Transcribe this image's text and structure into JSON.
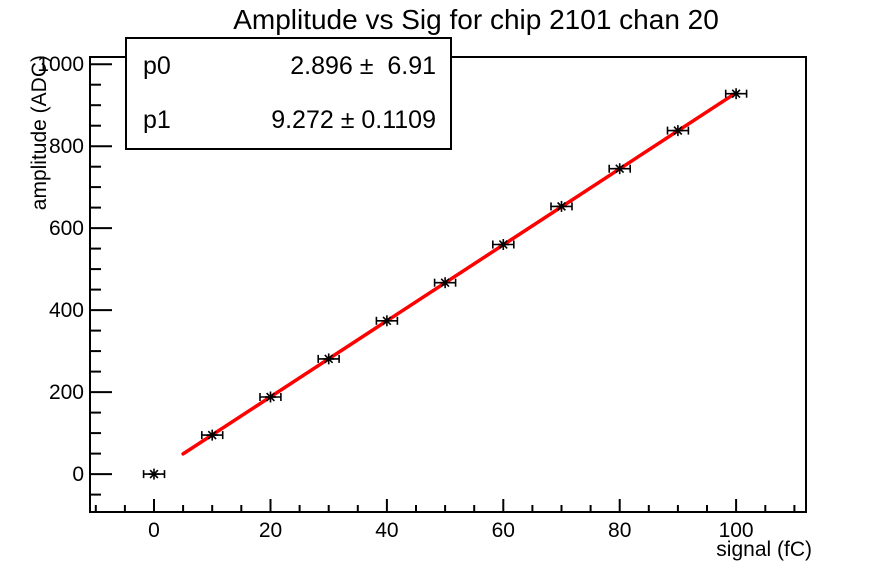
{
  "stats_box": {
    "rows": [
      {
        "label": "p0",
        "value": "2.896 ±  6.91"
      },
      {
        "label": "p1",
        "value": "9.272 ± 0.1109"
      }
    ]
  },
  "chart_data": {
    "type": "scatter",
    "title": "Amplitude vs Sig for chip 2101 chan 20",
    "xlabel": "signal (fC)",
    "ylabel": "amplitude (ADC)",
    "xlim": [
      -11,
      112
    ],
    "ylim": [
      -92.5,
      1017.5
    ],
    "x_major_ticks": [
      0,
      20,
      40,
      60,
      80,
      100
    ],
    "x_minor_step": 5,
    "y_major_ticks": [
      0,
      200,
      400,
      600,
      800,
      1000
    ],
    "y_minor_step": 50,
    "grid": false,
    "legend": null,
    "series": [
      {
        "name": "amplitude-vs-signal-points",
        "marker": "asterisk",
        "color": "#000000",
        "x": [
          0,
          10,
          20,
          30,
          40,
          50,
          60,
          70,
          80,
          90,
          100
        ],
        "y": [
          0,
          95,
          188,
          281,
          374,
          467,
          560,
          653,
          745,
          838,
          928
        ],
        "x_err": 1.8
      }
    ],
    "fit": {
      "name": "linear-fit",
      "p0": 2.896,
      "p0_err": 6.91,
      "p1": 9.272,
      "p1_err": 0.1109,
      "x_range": [
        5,
        100
      ],
      "color": "#ff0000"
    }
  }
}
